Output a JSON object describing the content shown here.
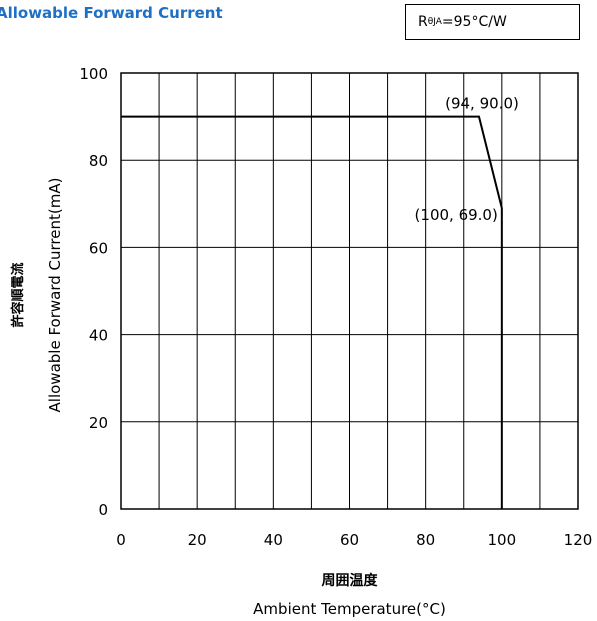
{
  "chart_data": {
    "type": "line",
    "title": "Allowable Forward Current",
    "thermal_resistance": {
      "symbol": "R",
      "subscript": "θJA",
      "value": "=95°C/W"
    },
    "xlabel_jp": "周囲温度",
    "xlabel": "Ambient Temperature(°C)",
    "ylabel_jp": "許容順電流",
    "ylabel": "Allowable Forward Current(mA)",
    "xlim": [
      0,
      120
    ],
    "ylim": [
      0,
      100
    ],
    "x_ticks": [
      0,
      20,
      40,
      60,
      80,
      100,
      120
    ],
    "y_ticks": [
      0,
      20,
      40,
      60,
      80,
      100
    ],
    "x_grid_step": 10,
    "y_grid_step": 20,
    "grid": true,
    "series": [
      {
        "x": [
          0,
          94,
          100,
          100
        ],
        "y": [
          90.0,
          90.0,
          69.0,
          0
        ]
      }
    ],
    "annotations": [
      {
        "text": "(94, 90.0)",
        "x": 94,
        "y": 90.0
      },
      {
        "text": "(100, 69.0)",
        "x": 100,
        "y": 69.0
      }
    ]
  }
}
